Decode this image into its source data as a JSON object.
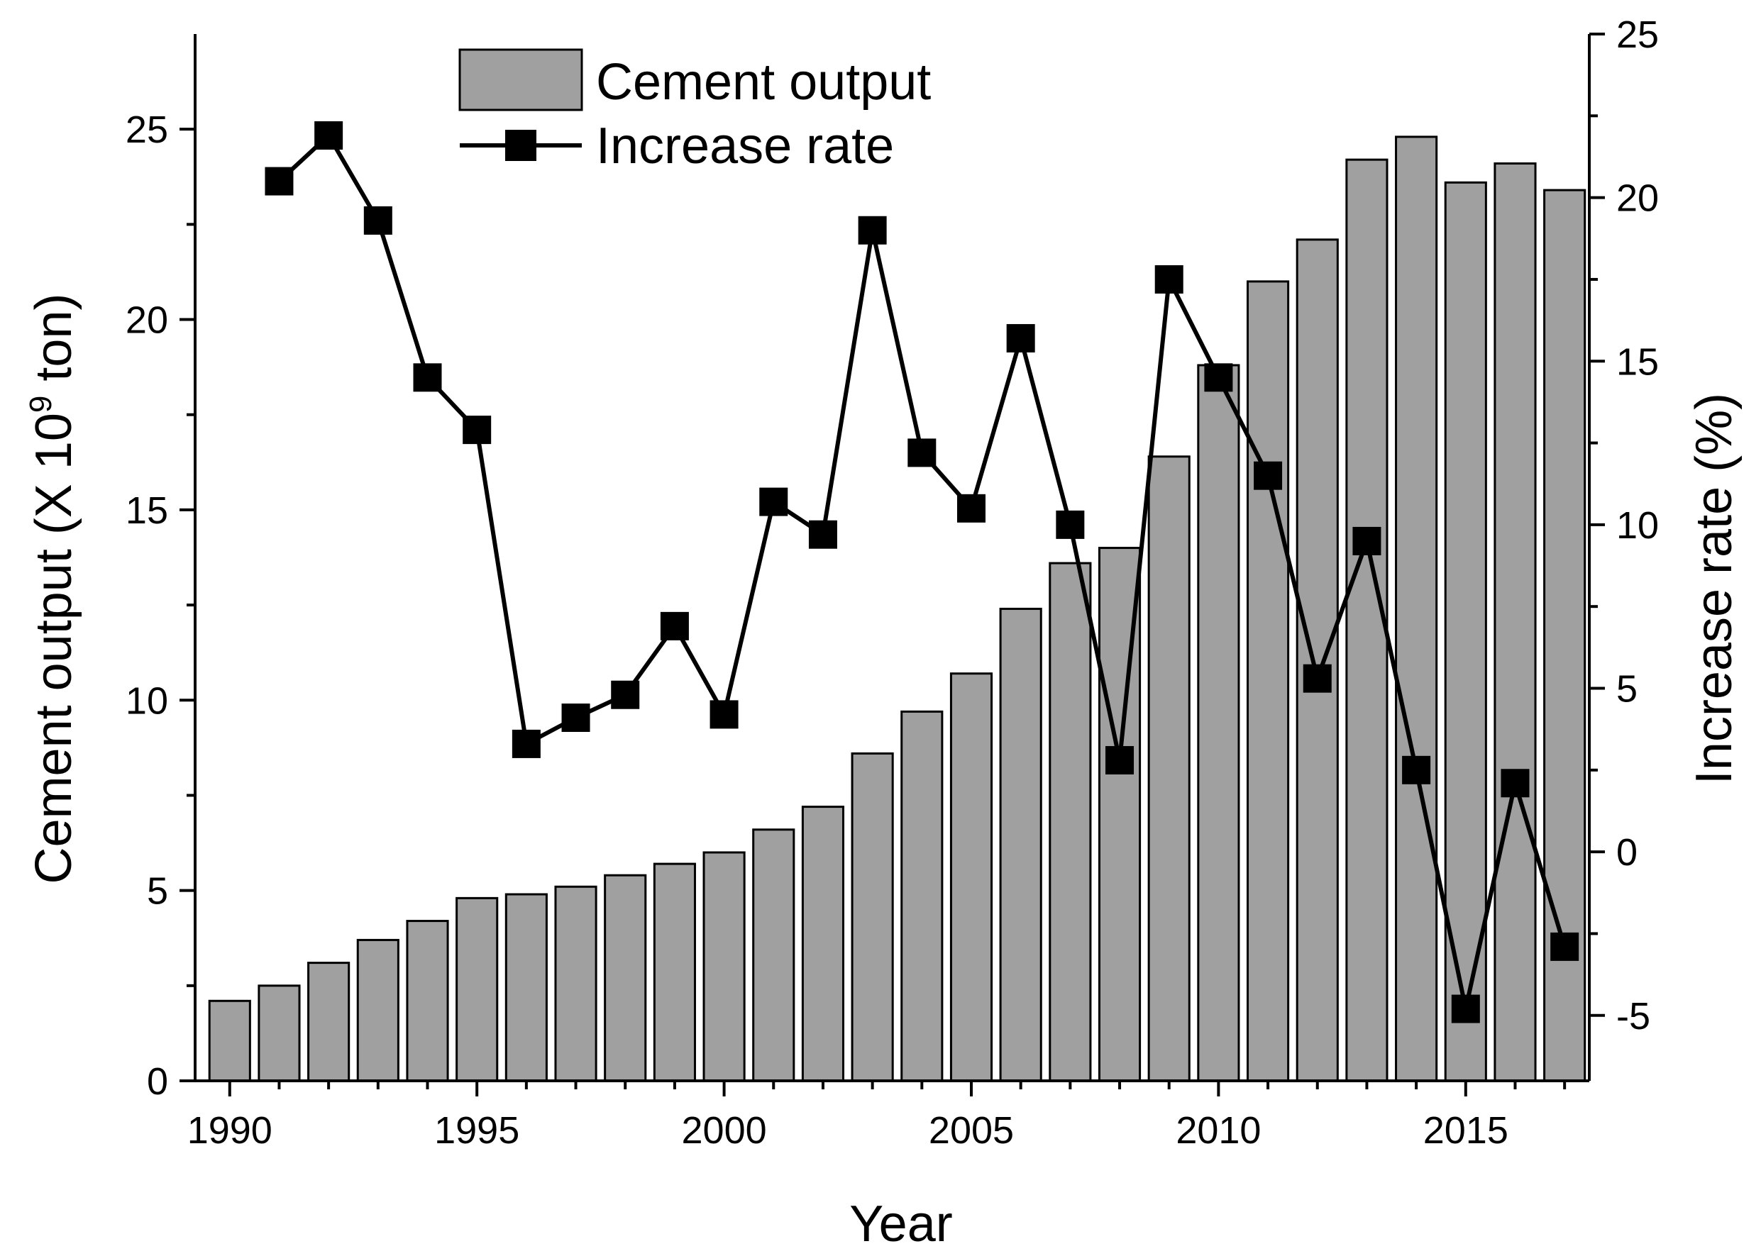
{
  "chart_data": {
    "type": "bar+line",
    "title": "",
    "xlabel": "Year",
    "ylabel_left": "Cement output (X 10",
    "ylabel_left_sup": "9",
    "ylabel_left_suffix": " ton)",
    "ylabel_right": "Increase rate (%)",
    "x_ticks": [
      1990,
      1995,
      2000,
      2005,
      2010,
      2015
    ],
    "y_left_ticks": [
      0,
      5,
      10,
      15,
      20,
      25
    ],
    "y_right_ticks": [
      -5,
      0,
      5,
      10,
      15,
      20,
      25
    ],
    "xlim": [
      1989.3,
      2017.5
    ],
    "ylim_left": [
      0,
      27.5
    ],
    "ylim_right": [
      -7,
      25
    ],
    "legend_position": "top-center",
    "series": [
      {
        "name": "Cement output",
        "kind": "bar",
        "axis": "left",
        "color": "#a0a0a0",
        "x": [
          1990,
          1991,
          1992,
          1993,
          1994,
          1995,
          1996,
          1997,
          1998,
          1999,
          2000,
          2001,
          2002,
          2003,
          2004,
          2005,
          2006,
          2007,
          2008,
          2009,
          2010,
          2011,
          2012,
          2013,
          2014,
          2015,
          2016,
          2017
        ],
        "values": [
          2.1,
          2.5,
          3.1,
          3.7,
          4.2,
          4.8,
          4.9,
          5.1,
          5.4,
          5.7,
          6.0,
          6.6,
          7.2,
          8.6,
          9.7,
          10.7,
          12.4,
          13.6,
          14.0,
          16.4,
          18.8,
          21.0,
          22.1,
          24.2,
          24.8,
          23.6,
          24.1,
          23.4
        ]
      },
      {
        "name": "Increase rate",
        "kind": "line",
        "axis": "right",
        "color": "#000000",
        "x": [
          1991,
          1992,
          1993,
          1994,
          1995,
          1996,
          1997,
          1998,
          1999,
          2000,
          2001,
          2002,
          2003,
          2004,
          2005,
          2006,
          2007,
          2008,
          2009,
          2010,
          2011,
          2012,
          2013,
          2014,
          2015,
          2016,
          2017
        ],
        "values": [
          20.5,
          21.9,
          19.3,
          14.5,
          12.9,
          3.3,
          4.1,
          4.8,
          6.9,
          4.2,
          10.7,
          9.7,
          19.0,
          12.2,
          10.5,
          15.7,
          10.0,
          2.8,
          17.5,
          14.5,
          11.5,
          5.3,
          9.5,
          2.5,
          -4.8,
          2.1,
          -2.9
        ]
      }
    ]
  }
}
